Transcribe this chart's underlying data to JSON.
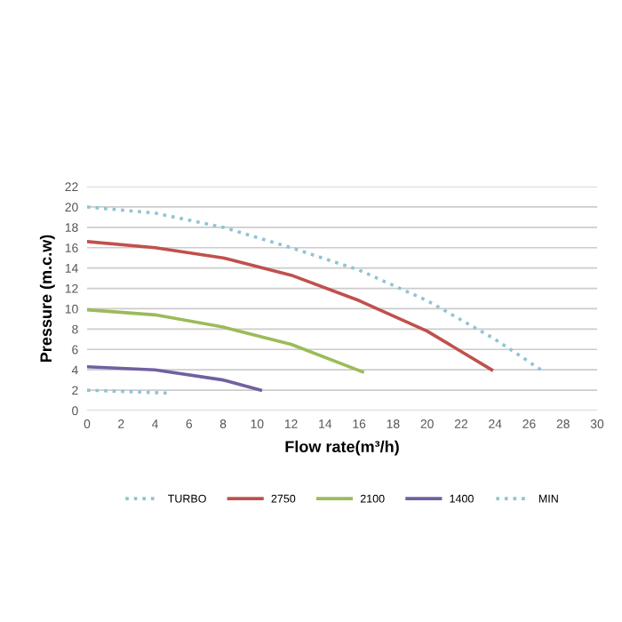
{
  "chart_data": {
    "type": "line",
    "xlabel": "Flow rate(m³/h)",
    "ylabel": "Pressure (m.c.w)",
    "xlim": [
      0,
      30
    ],
    "xticks": [
      0,
      2,
      4,
      6,
      8,
      10,
      12,
      14,
      16,
      18,
      20,
      22,
      24,
      26,
      28,
      30
    ],
    "ylim": [
      0,
      22
    ],
    "yticks": [
      0,
      2,
      4,
      6,
      8,
      10,
      12,
      14,
      16,
      18,
      20,
      22
    ],
    "grid": "y",
    "legend": "bottom",
    "series": [
      {
        "name": "TURBO",
        "color": "#8fc3d6",
        "line_style": "dotted",
        "x": [
          0,
          4,
          8,
          12,
          16,
          20,
          24,
          26.7
        ],
        "values": [
          20,
          19.4,
          18,
          16,
          13.8,
          10.8,
          7,
          4
        ]
      },
      {
        "name": "2750",
        "color": "#c0504d",
        "line_style": "solid",
        "x": [
          0,
          4,
          8,
          12,
          16,
          20,
          23.8
        ],
        "values": [
          16.6,
          16,
          15,
          13.3,
          10.8,
          7.8,
          4
        ]
      },
      {
        "name": "2100",
        "color": "#9bbb59",
        "line_style": "solid",
        "x": [
          0,
          4,
          8,
          12,
          16.2
        ],
        "values": [
          9.9,
          9.4,
          8.2,
          6.5,
          3.8
        ]
      },
      {
        "name": "1400",
        "color": "#7060a0",
        "line_style": "solid",
        "x": [
          0,
          4,
          8,
          10.2
        ],
        "values": [
          4.3,
          4,
          3,
          2
        ]
      },
      {
        "name": "MIN",
        "color": "#8fc3d6",
        "line_style": "dotted",
        "x": [
          0,
          5
        ],
        "values": [
          2,
          1.7
        ]
      }
    ]
  }
}
